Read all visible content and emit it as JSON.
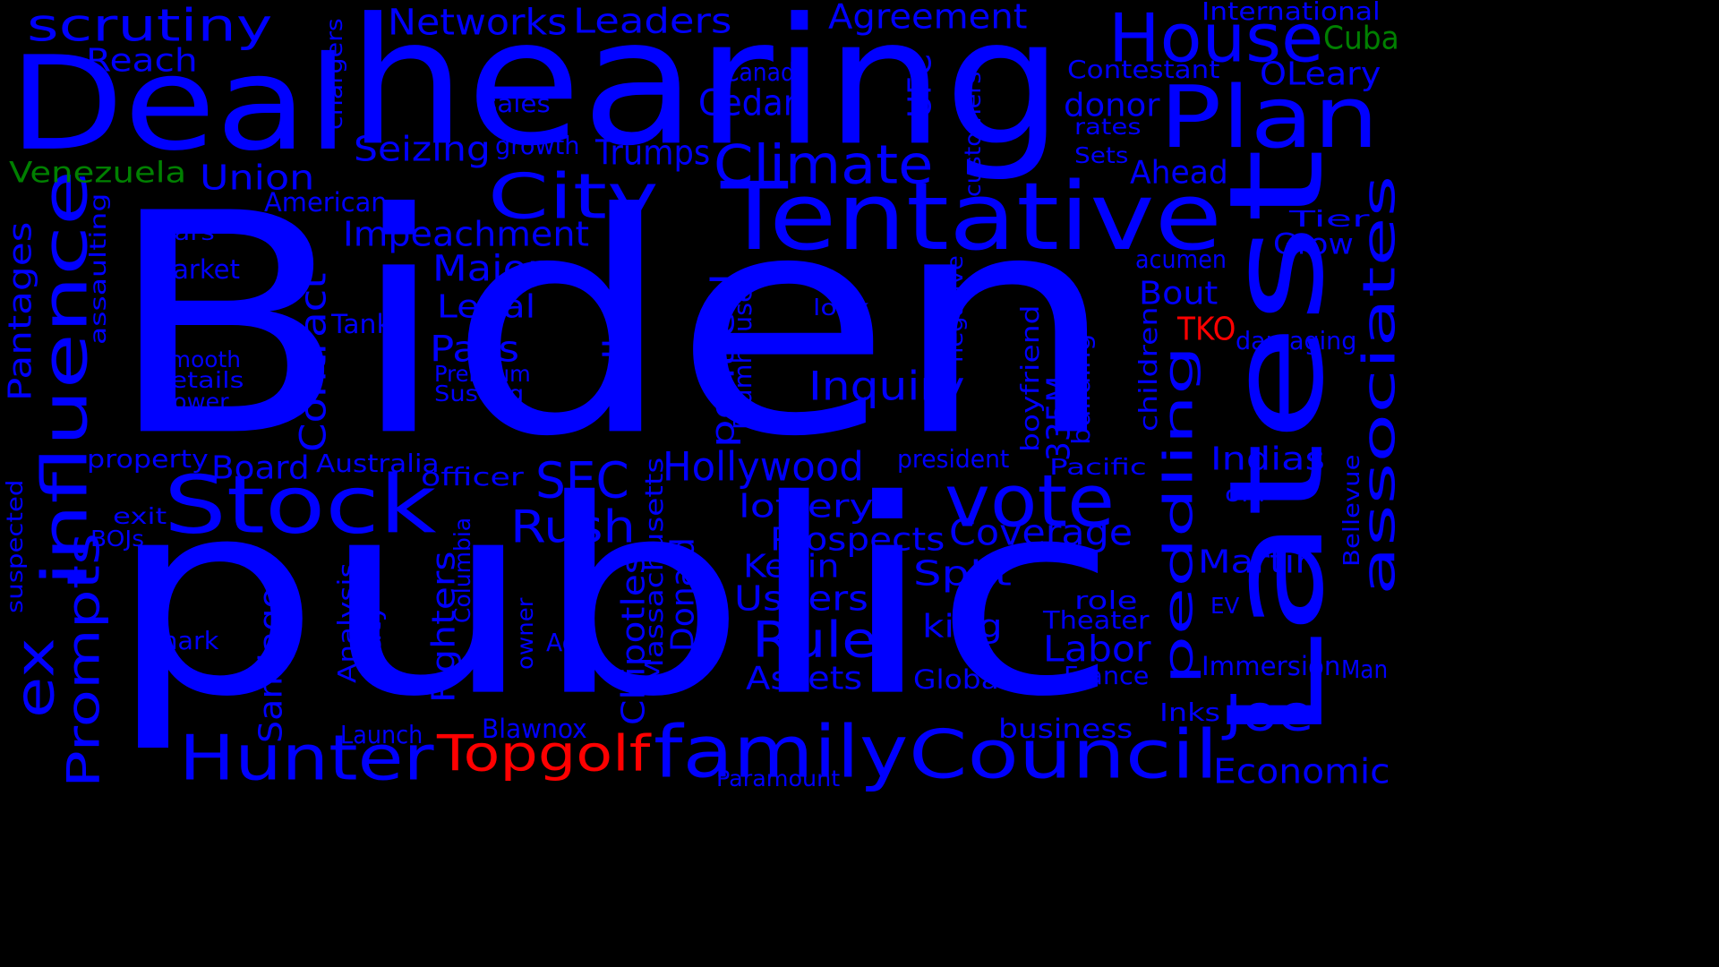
{
  "background": "#000000",
  "colors": {
    "blue": "#0000ff",
    "red": "#ff0000",
    "green": "#008000"
  },
  "words": [
    {
      "text": "Biden",
      "color": "blue"
    },
    {
      "text": "public",
      "color": "blue"
    },
    {
      "text": "hearing",
      "color": "blue"
    },
    {
      "text": "Latest",
      "color": "blue"
    },
    {
      "text": "Deal",
      "color": "blue"
    },
    {
      "text": "Tentative",
      "color": "blue"
    },
    {
      "text": "Plan",
      "color": "blue"
    },
    {
      "text": "House",
      "color": "blue"
    },
    {
      "text": "influence",
      "color": "blue"
    },
    {
      "text": "associates",
      "color": "blue"
    },
    {
      "text": "peddling",
      "color": "blue"
    },
    {
      "text": "Stock",
      "color": "blue"
    },
    {
      "text": "family",
      "color": "blue"
    },
    {
      "text": "Council",
      "color": "blue"
    },
    {
      "text": "Hunter",
      "color": "blue"
    },
    {
      "text": "vote",
      "color": "blue"
    },
    {
      "text": "City",
      "color": "blue"
    },
    {
      "text": "Climate",
      "color": "blue"
    },
    {
      "text": "scrutiny",
      "color": "blue"
    },
    {
      "text": "ex",
      "color": "blue"
    },
    {
      "text": "Prompts",
      "color": "blue"
    },
    {
      "text": "Topgolf",
      "color": "red"
    },
    {
      "text": "SEC",
      "color": "blue"
    },
    {
      "text": "Rush",
      "color": "blue"
    },
    {
      "text": "Rule",
      "color": "blue"
    },
    {
      "text": "Joe",
      "color": "blue"
    },
    {
      "text": "Hollywood",
      "color": "blue"
    },
    {
      "text": "Inquiry",
      "color": "blue"
    },
    {
      "text": "Contract",
      "color": "blue"
    },
    {
      "text": "Impeachment",
      "color": "blue"
    },
    {
      "text": "Major",
      "color": "blue"
    },
    {
      "text": "Pass",
      "color": "blue"
    },
    {
      "text": "Legal",
      "color": "blue"
    },
    {
      "text": "Networks",
      "color": "blue"
    },
    {
      "text": "Leaders",
      "color": "blue"
    },
    {
      "text": "Agreement",
      "color": "blue"
    },
    {
      "text": "Union",
      "color": "blue"
    },
    {
      "text": "Reach",
      "color": "blue"
    },
    {
      "text": "Venezuela",
      "color": "green"
    },
    {
      "text": "Cuba",
      "color": "green"
    },
    {
      "text": "International",
      "color": "blue"
    },
    {
      "text": "OLeary",
      "color": "blue"
    },
    {
      "text": "Contestant",
      "color": "blue"
    },
    {
      "text": "donor",
      "color": "blue"
    },
    {
      "text": "rates",
      "color": "blue"
    },
    {
      "text": "Sets",
      "color": "blue"
    },
    {
      "text": "Ahead",
      "color": "blue"
    },
    {
      "text": "Tier",
      "color": "blue"
    },
    {
      "text": "Grow",
      "color": "blue"
    },
    {
      "text": "acumen",
      "color": "blue"
    },
    {
      "text": "Bout",
      "color": "blue"
    },
    {
      "text": "TKO",
      "color": "red"
    },
    {
      "text": "damaging",
      "color": "blue"
    },
    {
      "text": "Indias",
      "color": "blue"
    },
    {
      "text": "Pacific",
      "color": "blue"
    },
    {
      "text": "old",
      "color": "blue"
    },
    {
      "text": "Bellevue",
      "color": "blue"
    },
    {
      "text": "Martin",
      "color": "blue"
    },
    {
      "text": "EV",
      "color": "blue"
    },
    {
      "text": "Immersion",
      "color": "blue"
    },
    {
      "text": "Man",
      "color": "blue"
    },
    {
      "text": "Economic",
      "color": "blue"
    },
    {
      "text": "Inks",
      "color": "blue"
    },
    {
      "text": "business",
      "color": "blue"
    },
    {
      "text": "France",
      "color": "blue"
    },
    {
      "text": "Labor",
      "color": "blue"
    },
    {
      "text": "Theater",
      "color": "blue"
    },
    {
      "text": "role",
      "color": "blue"
    },
    {
      "text": "Global",
      "color": "blue"
    },
    {
      "text": "king",
      "color": "blue"
    },
    {
      "text": "Split",
      "color": "blue"
    },
    {
      "text": "Coverage",
      "color": "blue"
    },
    {
      "text": "president",
      "color": "blue"
    },
    {
      "text": "335M",
      "color": "blue"
    },
    {
      "text": "boyfriend",
      "color": "blue"
    },
    {
      "text": "building",
      "color": "blue"
    },
    {
      "text": "children",
      "color": "blue"
    },
    {
      "text": "negative",
      "color": "blue"
    },
    {
      "text": "customers",
      "color": "blue"
    },
    {
      "text": "UFC",
      "color": "blue"
    },
    {
      "text": "Canada",
      "color": "blue"
    },
    {
      "text": "Cedar",
      "color": "blue"
    },
    {
      "text": "sales",
      "color": "blue"
    },
    {
      "text": "growth",
      "color": "blue"
    },
    {
      "text": "Seizing",
      "color": "blue"
    },
    {
      "text": "Trumps",
      "color": "blue"
    },
    {
      "text": "chargers",
      "color": "blue"
    },
    {
      "text": "American",
      "color": "blue"
    },
    {
      "text": "cars",
      "color": "blue"
    },
    {
      "text": "Market",
      "color": "blue"
    },
    {
      "text": "Pantages",
      "color": "blue"
    },
    {
      "text": "assaulting",
      "color": "blue"
    },
    {
      "text": "Tank",
      "color": "blue"
    },
    {
      "text": "smooth",
      "color": "blue"
    },
    {
      "text": "Details",
      "color": "blue"
    },
    {
      "text": "tower",
      "color": "blue"
    },
    {
      "text": "property",
      "color": "blue"
    },
    {
      "text": "Board",
      "color": "blue"
    },
    {
      "text": "Australia",
      "color": "blue"
    },
    {
      "text": "officer",
      "color": "blue"
    },
    {
      "text": "exit",
      "color": "blue"
    },
    {
      "text": "BOJs",
      "color": "blue"
    },
    {
      "text": "suspected",
      "color": "blue"
    },
    {
      "text": "Shark",
      "color": "blue"
    },
    {
      "text": "Santiago",
      "color": "blue"
    },
    {
      "text": "Analysis",
      "color": "blue"
    },
    {
      "text": "Katy",
      "color": "blue"
    },
    {
      "text": "Fighters",
      "color": "blue"
    },
    {
      "text": "Columbia",
      "color": "blue"
    },
    {
      "text": "owner",
      "color": "blue"
    },
    {
      "text": "Ad",
      "color": "blue"
    },
    {
      "text": "Chipotles",
      "color": "blue"
    },
    {
      "text": "Massachusetts",
      "color": "blue"
    },
    {
      "text": "Donald",
      "color": "blue"
    },
    {
      "text": "Valley",
      "color": "blue"
    },
    {
      "text": "Premium",
      "color": "blue"
    },
    {
      "text": "Susong",
      "color": "blue"
    },
    {
      "text": "political",
      "color": "blue"
    },
    {
      "text": "Blumhouse",
      "color": "blue"
    },
    {
      "text": "look",
      "color": "blue"
    },
    {
      "text": "lottery",
      "color": "blue"
    },
    {
      "text": "Prospects",
      "color": "blue"
    },
    {
      "text": "Kevin",
      "color": "blue"
    },
    {
      "text": "Ushers",
      "color": "blue"
    },
    {
      "text": "Assets",
      "color": "blue"
    },
    {
      "text": "Launch",
      "color": "blue"
    },
    {
      "text": "Blawnox",
      "color": "blue"
    },
    {
      "text": "Paramount",
      "color": "blue"
    }
  ]
}
